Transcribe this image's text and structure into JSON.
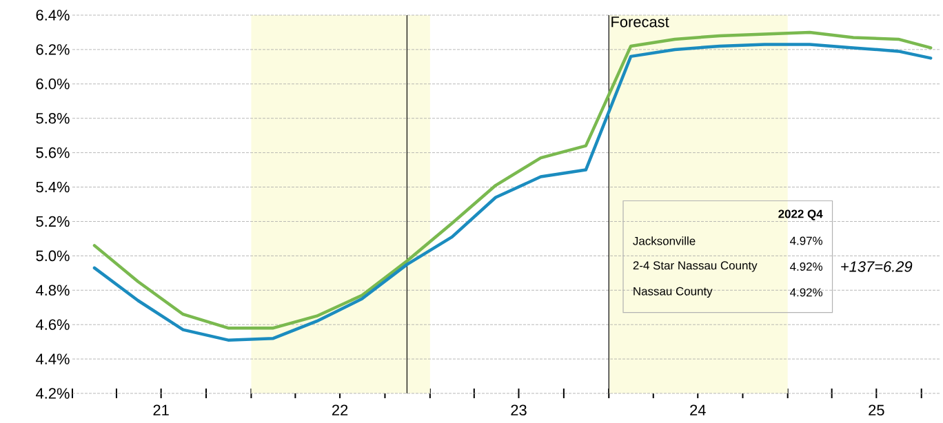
{
  "chart_data": {
    "type": "line",
    "x": [
      "2021-02-15",
      "2021-05-15",
      "2021-08-15",
      "2021-11-15",
      "2022-02-15",
      "2022-05-15",
      "2022-08-15",
      "2022-11-15",
      "2023-02-15",
      "2023-05-15",
      "2023-08-15",
      "2023-11-15",
      "2024-02-15",
      "2024-05-15",
      "2024-08-15",
      "2024-11-15",
      "2025-02-15",
      "2025-05-15",
      "2025-08-15",
      "2025-10-20"
    ],
    "series": [
      {
        "color": "#7ab94f",
        "values": [
          5.06,
          4.85,
          4.66,
          4.58,
          4.58,
          4.65,
          4.77,
          4.97,
          5.19,
          5.41,
          5.57,
          5.64,
          6.22,
          6.26,
          6.28,
          6.29,
          6.3,
          6.27,
          6.26,
          6.21
        ]
      },
      {
        "color": "#1b8cbf",
        "values": [
          4.93,
          4.74,
          4.57,
          4.51,
          4.52,
          4.62,
          4.75,
          4.95,
          5.11,
          5.34,
          5.46,
          5.5,
          6.16,
          6.2,
          6.22,
          6.23,
          6.23,
          6.21,
          6.19,
          6.15
        ]
      }
    ],
    "xlim": [
      "2021-01-01",
      "2025-11-07"
    ],
    "xticks": [
      {
        "value": "2021-01-01",
        "label": null
      },
      {
        "value": "2021-04-01",
        "label": null
      },
      {
        "value": "2021-07-01",
        "label": "21"
      },
      {
        "value": "2021-10-01",
        "label": null
      },
      {
        "value": "2022-01-01",
        "label": null
      },
      {
        "value": "2022-04-01",
        "label": null
      },
      {
        "value": "2022-07-01",
        "label": "22"
      },
      {
        "value": "2022-10-01",
        "label": null
      },
      {
        "value": "2023-01-01",
        "label": null
      },
      {
        "value": "2023-04-01",
        "label": null
      },
      {
        "value": "2023-07-01",
        "label": "23"
      },
      {
        "value": "2023-10-01",
        "label": null
      },
      {
        "value": "2024-01-01",
        "label": null
      },
      {
        "value": "2024-04-01",
        "label": null
      },
      {
        "value": "2024-07-01",
        "label": "24"
      },
      {
        "value": "2024-10-01",
        "label": null
      },
      {
        "value": "2025-01-01",
        "label": null
      },
      {
        "value": "2025-04-01",
        "label": null
      },
      {
        "value": "2025-07-01",
        "label": "25"
      },
      {
        "value": "2025-10-01",
        "label": null
      }
    ],
    "ylim": [
      4.2,
      6.4
    ],
    "yticks": [
      {
        "value": 4.2,
        "label": "4.2%"
      },
      {
        "value": 4.4,
        "label": "4.4%"
      },
      {
        "value": 4.6,
        "label": "4.6%"
      },
      {
        "value": 4.8,
        "label": "4.8%"
      },
      {
        "value": 5.0,
        "label": "5.0%"
      },
      {
        "value": 5.2,
        "label": "5.2%"
      },
      {
        "value": 5.4,
        "label": "5.4%"
      },
      {
        "value": 5.6,
        "label": "5.6%"
      },
      {
        "value": 5.8,
        "label": "5.8%"
      },
      {
        "value": 6.0,
        "label": "6.0%"
      },
      {
        "value": 6.2,
        "label": "6.2%"
      },
      {
        "value": 6.4,
        "label": "6.4%"
      }
    ],
    "grid": "y",
    "bands": [
      {
        "axis": "x",
        "from": "2022-01-01",
        "to": "2023-01-01",
        "color": "#fcfce0"
      },
      {
        "axis": "x",
        "from": "2024-01-01",
        "to": "2025-01-01",
        "color": "#fcfce0"
      }
    ],
    "ref_lines": [
      {
        "axis": "x",
        "value": "2022-11-15",
        "color": "#000000"
      },
      {
        "axis": "x",
        "value": "2024-01-01",
        "label": "Forecast",
        "color": "#000000"
      }
    ],
    "annotations": [
      "2022 Q4",
      "Jacksonville",
      "4.97%",
      "2-4 Star Nassau County",
      "4.92%",
      "Nassau County",
      "4.92%",
      "+137=6.29"
    ]
  }
}
